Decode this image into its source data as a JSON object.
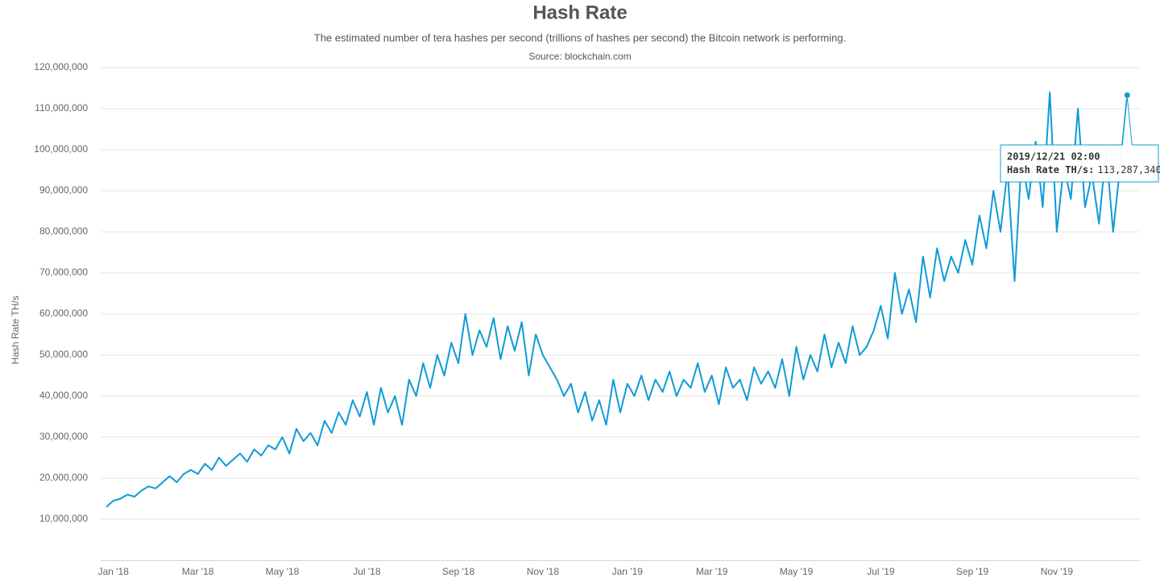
{
  "chart_data": {
    "type": "line",
    "title": "Hash Rate",
    "subtitle": "The estimated number of tera hashes per second (trillions of hashes per second) the Bitcoin network is performing.",
    "source": "Source: blockchain.com",
    "y_label": "Hash Rate TH/s",
    "categories": [
      null,
      "Jan '18",
      null,
      null,
      null,
      null,
      null,
      null,
      null,
      null,
      null,
      null,
      null,
      "Mar '18",
      null,
      null,
      null,
      null,
      null,
      null,
      null,
      null,
      null,
      null,
      null,
      "May '18",
      null,
      null,
      null,
      null,
      null,
      null,
      null,
      null,
      null,
      null,
      null,
      "Jul '18",
      null,
      null,
      null,
      null,
      null,
      null,
      null,
      null,
      null,
      null,
      null,
      null,
      "Sep '18",
      null,
      null,
      null,
      null,
      null,
      null,
      null,
      null,
      null,
      null,
      null,
      "Nov '18",
      null,
      null,
      null,
      null,
      null,
      null,
      null,
      null,
      null,
      null,
      null,
      "Jan '19",
      null,
      null,
      null,
      null,
      null,
      null,
      null,
      null,
      null,
      null,
      null,
      "Mar '19",
      null,
      null,
      null,
      null,
      null,
      null,
      null,
      null,
      null,
      null,
      null,
      "May '19",
      null,
      null,
      null,
      null,
      null,
      null,
      null,
      null,
      null,
      null,
      null,
      "Jul '19",
      null,
      null,
      null,
      null,
      null,
      null,
      null,
      null,
      null,
      null,
      null,
      null,
      "Sep '19",
      null,
      null,
      null,
      null,
      null,
      null,
      null,
      null,
      null,
      null,
      null,
      "Nov '19",
      null,
      null,
      null,
      null,
      null,
      null,
      null,
      null,
      null,
      null
    ],
    "series": [
      {
        "name": "Hash Rate TH/s",
        "color": "#0f9bd7",
        "values": [
          13000000,
          14500000,
          15000000,
          16000000,
          15500000,
          17000000,
          18000000,
          17500000,
          19000000,
          20500000,
          19000000,
          21000000,
          22000000,
          21000000,
          23500000,
          22000000,
          25000000,
          23000000,
          24500000,
          26000000,
          24000000,
          27000000,
          25500000,
          28000000,
          27000000,
          30000000,
          26000000,
          32000000,
          29000000,
          31000000,
          28000000,
          34000000,
          31000000,
          36000000,
          33000000,
          39000000,
          35000000,
          41000000,
          33000000,
          42000000,
          36000000,
          40000000,
          33000000,
          44000000,
          40000000,
          48000000,
          42000000,
          50000000,
          45000000,
          53000000,
          48000000,
          60000000,
          50000000,
          56000000,
          52000000,
          59000000,
          49000000,
          57000000,
          51000000,
          58000000,
          45000000,
          55000000,
          50000000,
          47000000,
          44000000,
          40000000,
          43000000,
          36000000,
          41000000,
          34000000,
          39000000,
          33000000,
          44000000,
          36000000,
          43000000,
          40000000,
          45000000,
          39000000,
          44000000,
          41000000,
          46000000,
          40000000,
          44000000,
          42000000,
          48000000,
          41000000,
          45000000,
          38000000,
          47000000,
          42000000,
          44000000,
          39000000,
          47000000,
          43000000,
          46000000,
          42000000,
          49000000,
          40000000,
          52000000,
          44000000,
          50000000,
          46000000,
          55000000,
          47000000,
          53000000,
          48000000,
          57000000,
          50000000,
          52000000,
          56000000,
          62000000,
          54000000,
          70000000,
          60000000,
          66000000,
          58000000,
          74000000,
          64000000,
          76000000,
          68000000,
          74000000,
          70000000,
          78000000,
          72000000,
          84000000,
          76000000,
          90000000,
          80000000,
          95000000,
          68000000,
          98000000,
          88000000,
          102000000,
          86000000,
          114000000,
          80000000,
          96000000,
          88000000,
          110000000,
          86000000,
          94000000,
          82000000,
          100000000,
          80000000,
          96000000,
          113287340
        ]
      }
    ],
    "ylim": [
      0,
      120000000
    ],
    "yticks": [
      {
        "value": 10000000,
        "label": "10,000,000"
      },
      {
        "value": 20000000,
        "label": "20,000,000"
      },
      {
        "value": 30000000,
        "label": "30,000,000"
      },
      {
        "value": 40000000,
        "label": "40,000,000"
      },
      {
        "value": 50000000,
        "label": "50,000,000"
      },
      {
        "value": 60000000,
        "label": "60,000,000"
      },
      {
        "value": 70000000,
        "label": "70,000,000"
      },
      {
        "value": 80000000,
        "label": "80,000,000"
      },
      {
        "value": 90000000,
        "label": "90,000,000"
      },
      {
        "value": 100000000,
        "label": "100,000,000"
      },
      {
        "value": 110000000,
        "label": "110,000,000"
      },
      {
        "value": 120000000,
        "label": "120,000,000"
      }
    ],
    "grid": true,
    "tooltip": {
      "title": "2019/12/21 02:00",
      "series_label": "Hash Rate TH/s:",
      "value": 113287340,
      "value_label": "113,287,340"
    }
  }
}
